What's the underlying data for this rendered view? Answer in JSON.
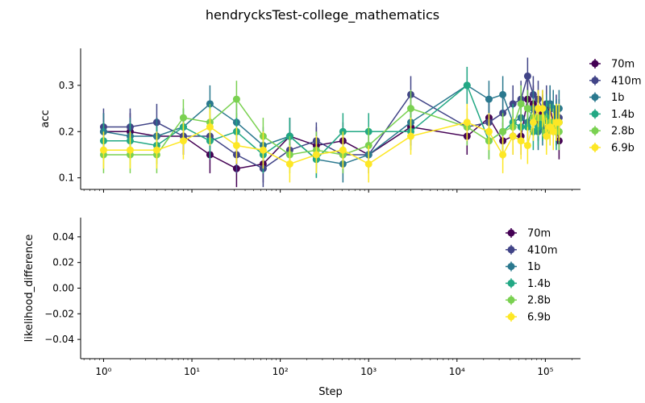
{
  "chart_data": {
    "type": "line",
    "title": "hendrycksTest-college_mathematics",
    "xlabel": "Step",
    "x_scale": "log",
    "x_ticks": [
      {
        "value": 1,
        "label": "10⁰"
      },
      {
        "value": 10,
        "label": "10¹"
      },
      {
        "value": 100,
        "label": "10²"
      },
      {
        "value": 1000,
        "label": "10³"
      },
      {
        "value": 10000,
        "label": "10⁴"
      },
      {
        "value": 100000,
        "label": "10⁵"
      }
    ],
    "legend_position": "right",
    "panels": [
      {
        "id": "acc",
        "ylabel": "acc",
        "ylim": [
          0.075,
          0.38
        ],
        "y_ticks": [
          {
            "value": 0.1,
            "label": "0.1"
          },
          {
            "value": 0.2,
            "label": "0.2"
          },
          {
            "value": 0.3,
            "label": "0.3"
          }
        ],
        "series": [
          {
            "name": "70m",
            "color": "#440154",
            "x": [
              1,
              2,
              4,
              8,
              16,
              32,
              64,
              128,
              256,
              512,
              1000,
              3000,
              13000,
              23000,
              33000,
              43000,
              53000,
              63000,
              73000,
              83000,
              93000,
              103000,
              113000,
              123000,
              133000,
              143000
            ],
            "y": [
              0.2,
              0.2,
              0.19,
              0.19,
              0.15,
              0.12,
              0.13,
              0.19,
              0.17,
              0.18,
              0.15,
              0.21,
              0.19,
              0.23,
              0.18,
              0.19,
              0.19,
              0.27,
              0.26,
              0.22,
              0.24,
              0.23,
              0.25,
              0.22,
              0.21,
              0.18
            ],
            "err": 0.04
          },
          {
            "name": "410m",
            "color": "#414487",
            "x": [
              1,
              2,
              4,
              8,
              16,
              32,
              64,
              128,
              256,
              512,
              1000,
              3000,
              13000,
              23000,
              33000,
              43000,
              53000,
              63000,
              73000,
              83000,
              93000,
              103000,
              113000,
              123000,
              133000,
              143000
            ],
            "y": [
              0.21,
              0.21,
              0.22,
              0.19,
              0.19,
              0.15,
              0.12,
              0.16,
              0.18,
              0.15,
              0.15,
              0.28,
              0.21,
              0.22,
              0.24,
              0.26,
              0.27,
              0.32,
              0.28,
              0.27,
              0.25,
              0.26,
              0.26,
              0.25,
              0.24,
              0.23
            ],
            "err": 0.04
          },
          {
            "name": "1b",
            "color": "#2a788e",
            "x": [
              1,
              2,
              4,
              8,
              16,
              32,
              64,
              128,
              256,
              512,
              1000,
              3000,
              13000,
              23000,
              33000,
              43000,
              53000,
              63000,
              73000,
              83000,
              93000,
              103000,
              113000,
              123000,
              133000,
              143000
            ],
            "y": [
              0.2,
              0.19,
              0.19,
              0.21,
              0.26,
              0.22,
              0.17,
              0.19,
              0.14,
              0.13,
              0.15,
              0.22,
              0.3,
              0.27,
              0.28,
              0.22,
              0.23,
              0.22,
              0.25,
              0.2,
              0.21,
              0.24,
              0.26,
              0.25,
              0.23,
              0.25
            ],
            "err": 0.04
          },
          {
            "name": "1.4b",
            "color": "#22a884",
            "x": [
              1,
              2,
              4,
              8,
              16,
              32,
              64,
              128,
              256,
              512,
              1000,
              3000,
              13000,
              23000,
              33000,
              43000,
              53000,
              63000,
              73000,
              83000,
              93000,
              103000,
              113000,
              123000,
              133000,
              143000
            ],
            "y": [
              0.18,
              0.18,
              0.17,
              0.21,
              0.18,
              0.2,
              0.15,
              0.19,
              0.14,
              0.2,
              0.2,
              0.2,
              0.3,
              0.18,
              0.2,
              0.22,
              0.21,
              0.21,
              0.2,
              0.21,
              0.22,
              0.23,
              0.21,
              0.22,
              0.2,
              0.22
            ],
            "err": 0.04
          },
          {
            "name": "2.8b",
            "color": "#7ad151",
            "x": [
              1,
              2,
              4,
              8,
              16,
              32,
              64,
              128,
              256,
              512,
              1000,
              3000,
              13000,
              23000,
              33000,
              43000,
              53000,
              63000,
              73000,
              83000,
              93000,
              103000,
              113000,
              123000,
              133000,
              143000
            ],
            "y": [
              0.15,
              0.15,
              0.15,
              0.23,
              0.22,
              0.27,
              0.19,
              0.15,
              0.16,
              0.15,
              0.17,
              0.25,
              0.21,
              0.18,
              0.2,
              0.21,
              0.26,
              0.25,
              0.23,
              0.23,
              0.23,
              0.2,
              0.22,
              0.21,
              0.22,
              0.2
            ],
            "err": 0.04
          },
          {
            "name": "6.9b",
            "color": "#fde725",
            "x": [
              1,
              2,
              4,
              8,
              16,
              32,
              64,
              128,
              256,
              512,
              1000,
              3000,
              13000,
              23000,
              33000,
              43000,
              53000,
              63000,
              73000,
              83000,
              93000,
              103000,
              113000,
              123000,
              133000,
              143000
            ],
            "y": [
              0.16,
              0.16,
              0.16,
              0.18,
              0.21,
              0.17,
              0.16,
              0.13,
              0.15,
              0.16,
              0.13,
              0.19,
              0.22,
              0.2,
              0.15,
              0.19,
              0.18,
              0.17,
              0.22,
              0.25,
              0.25,
              0.19,
              0.21,
              0.2,
              0.22,
              0.22
            ],
            "err": 0.04
          }
        ]
      },
      {
        "id": "likelihood_difference",
        "ylabel": "likelihood_difference",
        "ylim": [
          -0.055,
          0.055
        ],
        "y_ticks": [
          {
            "value": 0.04,
            "label": "0.04"
          },
          {
            "value": 0.02,
            "label": "0.02"
          },
          {
            "value": 0.0,
            "label": "0.00"
          },
          {
            "value": -0.02,
            "label": "−0.02"
          },
          {
            "value": -0.04,
            "label": "−0.04"
          }
        ],
        "series": [
          {
            "name": "70m",
            "color": "#440154",
            "x": [],
            "y": []
          },
          {
            "name": "410m",
            "color": "#414487",
            "x": [],
            "y": []
          },
          {
            "name": "1b",
            "color": "#2a788e",
            "x": [],
            "y": []
          },
          {
            "name": "1.4b",
            "color": "#22a884",
            "x": [],
            "y": []
          },
          {
            "name": "2.8b",
            "color": "#7ad151",
            "x": [],
            "y": []
          },
          {
            "name": "6.9b",
            "color": "#fde725",
            "x": [],
            "y": []
          }
        ]
      }
    ]
  }
}
